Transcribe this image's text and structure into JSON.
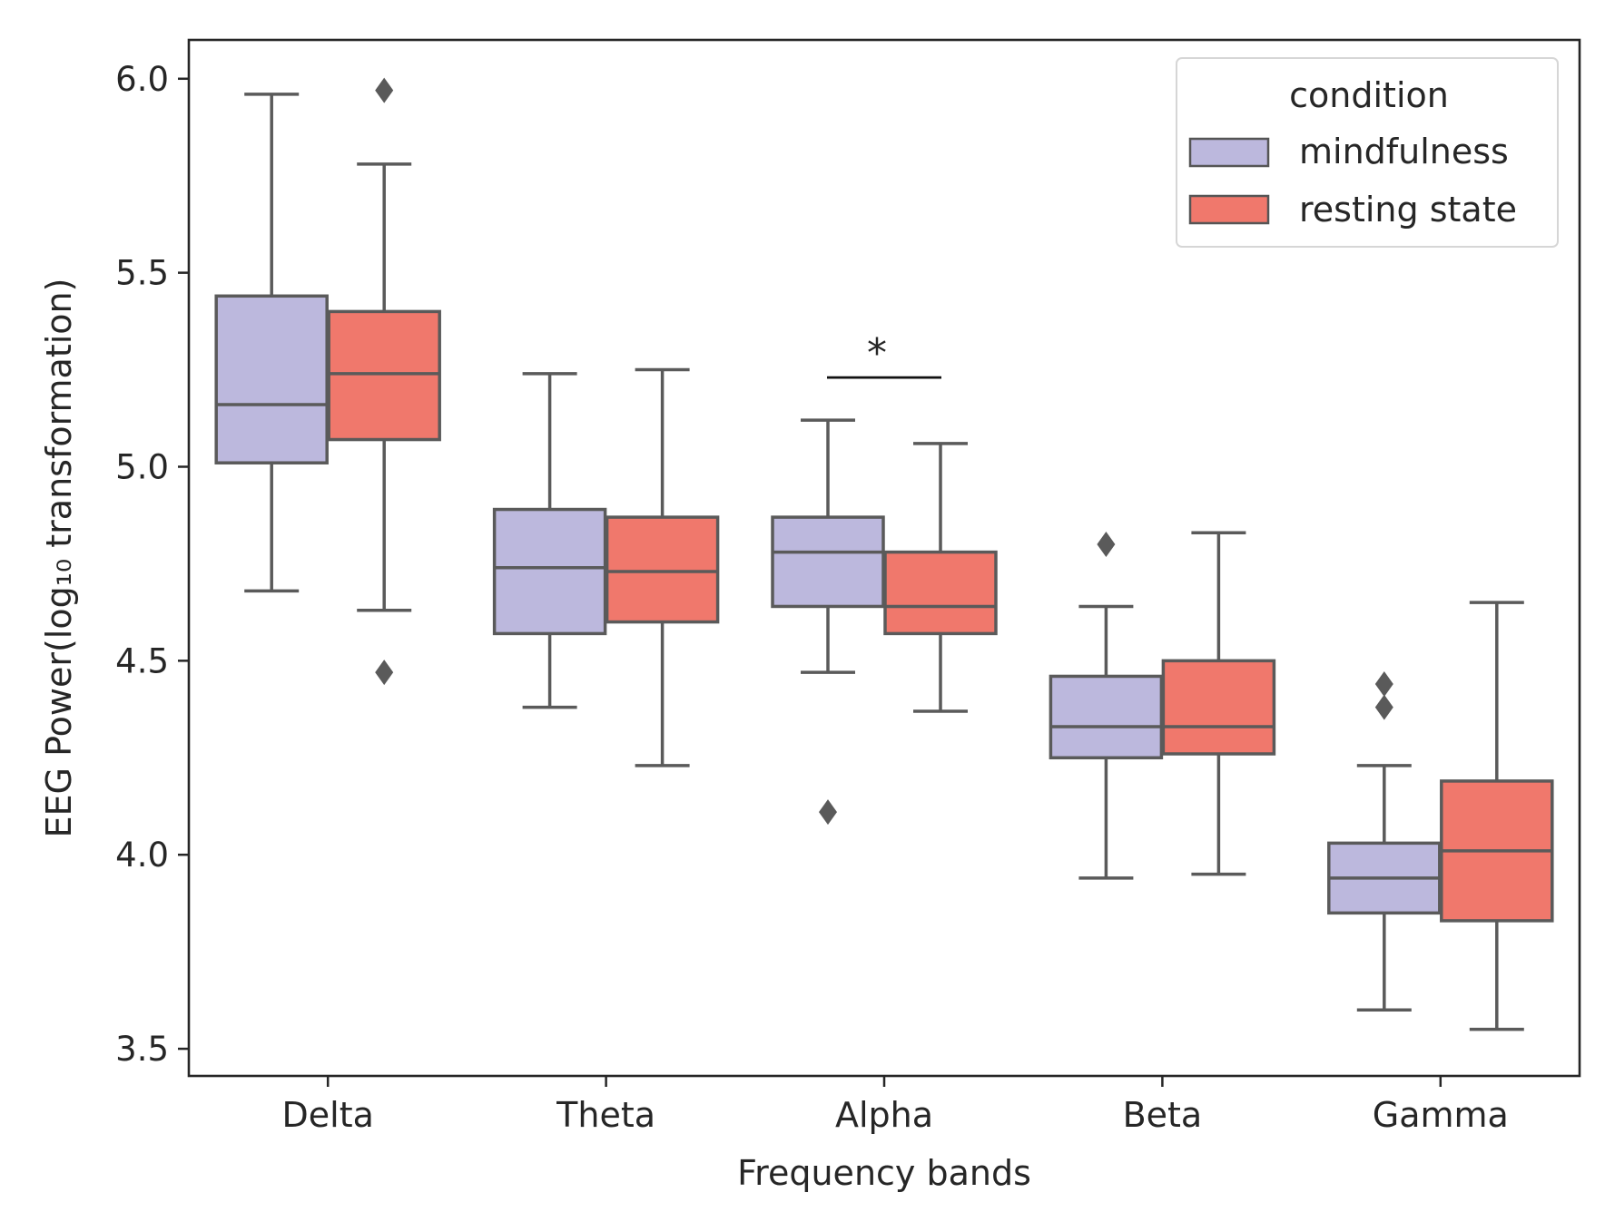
{
  "chart_data": {
    "type": "box",
    "xlabel": "Frequency bands",
    "ylabel": "EEG Power(log₁₀ transformation)",
    "categories": [
      "Delta",
      "Theta",
      "Alpha",
      "Beta",
      "Gamma"
    ],
    "ylim": [
      3.43,
      6.1
    ],
    "yticks": [
      3.5,
      4.0,
      4.5,
      5.0,
      5.5,
      6.0
    ],
    "ytick_labels": [
      "3.5",
      "4.0",
      "4.5",
      "5.0",
      "5.5",
      "6.0"
    ],
    "grid": false,
    "legend": {
      "title": "condition",
      "position": "top-right"
    },
    "series": [
      {
        "name": "mindfulness",
        "color": "#bcb8dd",
        "boxes": [
          {
            "whislo": 4.68,
            "q1": 5.01,
            "med": 5.16,
            "q3": 5.44,
            "whishi": 5.96,
            "fliers": []
          },
          {
            "whislo": 4.38,
            "q1": 4.57,
            "med": 4.74,
            "q3": 4.89,
            "whishi": 5.24,
            "fliers": []
          },
          {
            "whislo": 4.47,
            "q1": 4.64,
            "med": 4.78,
            "q3": 4.87,
            "whishi": 5.12,
            "fliers": [
              4.11
            ]
          },
          {
            "whislo": 3.94,
            "q1": 4.25,
            "med": 4.33,
            "q3": 4.46,
            "whishi": 4.64,
            "fliers": [
              4.8
            ]
          },
          {
            "whislo": 3.6,
            "q1": 3.85,
            "med": 3.94,
            "q3": 4.03,
            "whishi": 4.23,
            "fliers": [
              4.38,
              4.44
            ]
          }
        ]
      },
      {
        "name": "resting state",
        "color": "#f0786c",
        "boxes": [
          {
            "whislo": 4.63,
            "q1": 5.07,
            "med": 5.24,
            "q3": 5.4,
            "whishi": 5.78,
            "fliers": [
              5.97,
              4.47
            ]
          },
          {
            "whislo": 4.23,
            "q1": 4.6,
            "med": 4.73,
            "q3": 4.87,
            "whishi": 5.25,
            "fliers": []
          },
          {
            "whislo": 4.37,
            "q1": 4.57,
            "med": 4.64,
            "q3": 4.78,
            "whishi": 5.06,
            "fliers": []
          },
          {
            "whislo": 3.95,
            "q1": 4.26,
            "med": 4.33,
            "q3": 4.5,
            "whishi": 4.83,
            "fliers": []
          },
          {
            "whislo": 3.55,
            "q1": 3.83,
            "med": 4.01,
            "q3": 4.19,
            "whishi": 4.65,
            "fliers": []
          }
        ]
      }
    ],
    "annotations": [
      {
        "text": "*",
        "category": "Alpha",
        "y": 5.23
      }
    ]
  }
}
